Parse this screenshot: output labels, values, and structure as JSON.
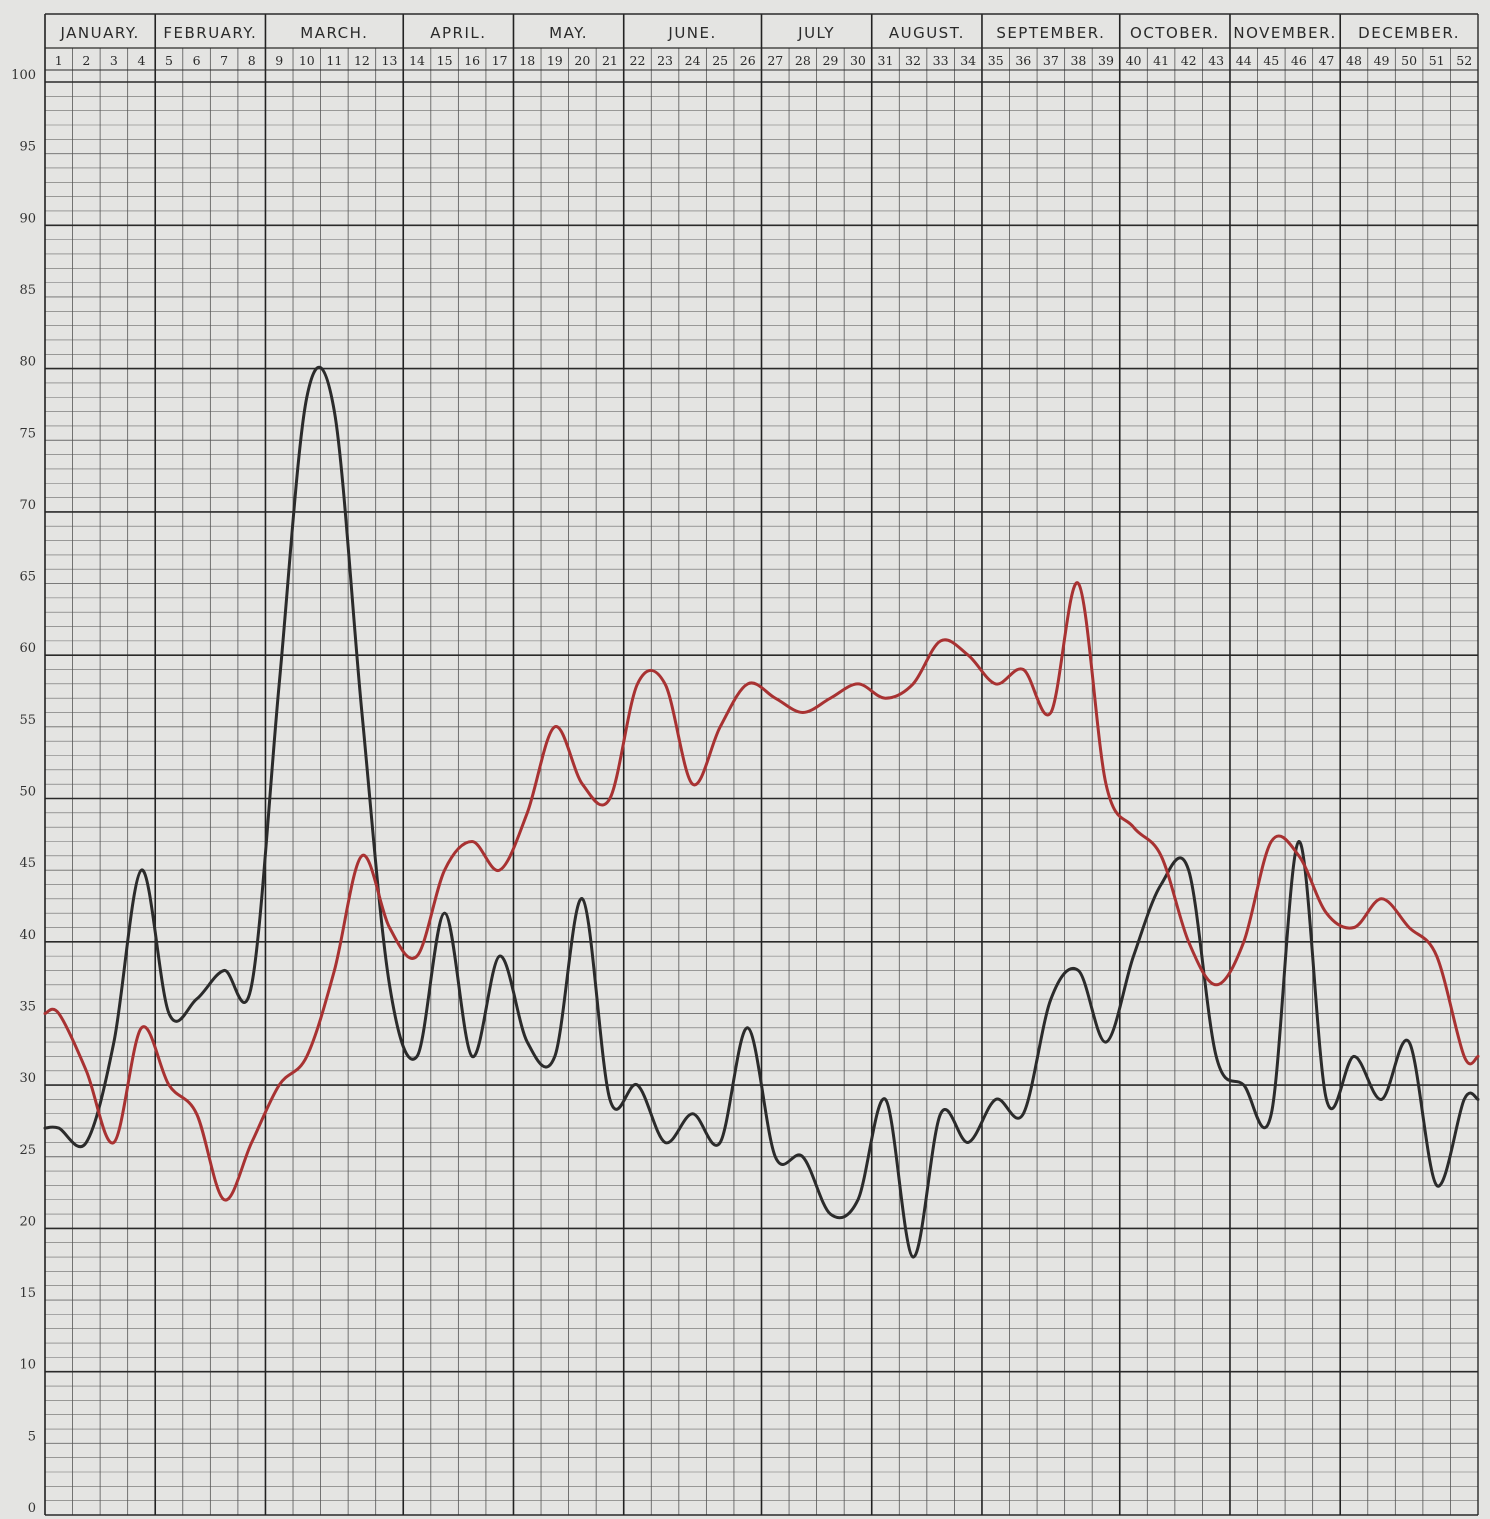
{
  "chart_data": {
    "type": "line",
    "title": "",
    "xlabel": "",
    "ylabel": "",
    "ylim": [
      0,
      100
    ],
    "y_ticks": [
      0,
      5,
      10,
      15,
      20,
      25,
      30,
      35,
      40,
      45,
      50,
      55,
      60,
      65,
      70,
      75,
      80,
      85,
      90,
      95,
      100
    ],
    "grid": "on",
    "months": [
      {
        "label": "JANUARY.",
        "weeks": [
          1,
          4
        ]
      },
      {
        "label": "FEBRUARY.",
        "weeks": [
          5,
          8
        ]
      },
      {
        "label": "MARCH.",
        "weeks": [
          9,
          13
        ]
      },
      {
        "label": "APRIL.",
        "weeks": [
          14,
          17
        ]
      },
      {
        "label": "MAY.",
        "weeks": [
          18,
          21
        ]
      },
      {
        "label": "JUNE.",
        "weeks": [
          22,
          26
        ]
      },
      {
        "label": "JULY",
        "weeks": [
          27,
          30
        ]
      },
      {
        "label": "AUGUST.",
        "weeks": [
          31,
          34
        ]
      },
      {
        "label": "SEPTEMBER.",
        "weeks": [
          35,
          39
        ]
      },
      {
        "label": "OCTOBER.",
        "weeks": [
          40,
          43
        ]
      },
      {
        "label": "NOVEMBER.",
        "weeks": [
          44,
          47
        ]
      },
      {
        "label": "DECEMBER.",
        "weeks": [
          48,
          52
        ]
      }
    ],
    "x": [
      1,
      2,
      3,
      4,
      5,
      6,
      7,
      8,
      9,
      10,
      11,
      12,
      13,
      14,
      15,
      16,
      17,
      18,
      19,
      20,
      21,
      22,
      23,
      24,
      25,
      26,
      27,
      28,
      29,
      30,
      31,
      32,
      33,
      34,
      35,
      36,
      37,
      38,
      39,
      40,
      41,
      42,
      43,
      44,
      45,
      46,
      47,
      48,
      49,
      50,
      51,
      52
    ],
    "series": [
      {
        "color": "#2b2b2b",
        "values": [
          27,
          26,
          33,
          45,
          35,
          36,
          38,
          37,
          58,
          78,
          77,
          56,
          37,
          32,
          42,
          32,
          39,
          33,
          32,
          43,
          29,
          30,
          26,
          28,
          26,
          34,
          25,
          25,
          21,
          22,
          29,
          18,
          28,
          26,
          29,
          28,
          36,
          38,
          33,
          39,
          44,
          45,
          32,
          30,
          28,
          47,
          29,
          32,
          29,
          33,
          23,
          29
        ]
      },
      {
        "color": "#a83232",
        "values": [
          35,
          31,
          26,
          34,
          30,
          28,
          22,
          26,
          30,
          32,
          38,
          46,
          41,
          39,
          45,
          47,
          45,
          49,
          55,
          51,
          50,
          58,
          58,
          51,
          55,
          58,
          57,
          56,
          57,
          58,
          57,
          58,
          61,
          60,
          58,
          59,
          56,
          65,
          51,
          48,
          46,
          40,
          37,
          40,
          47,
          46,
          42,
          41,
          43,
          41,
          39,
          32
        ]
      }
    ]
  }
}
